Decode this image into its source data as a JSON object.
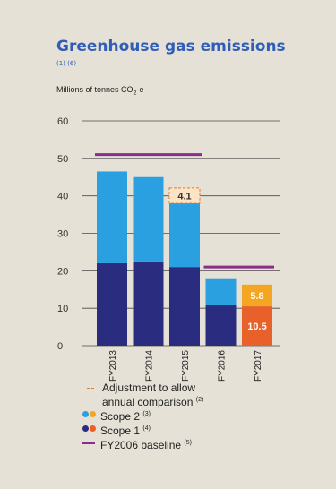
{
  "colors": {
    "scope1_main": "#2a2c7f",
    "scope2_main": "#2aa0e0",
    "scope1_fy2017": "#e8612a",
    "scope2_fy2017": "#f4a623",
    "baseline": "#8b2d8e",
    "adjustment": "#e8792a",
    "axis_text": "#333333"
  },
  "chart_data": {
    "type": "bar",
    "title": "Greenhouse gas emissions",
    "title_notes": "(1) (6)",
    "ylabel": "Millions of tonnes CO",
    "ylabel_sub": "2",
    "ylabel_suffix": "-e",
    "ylim": [
      0,
      60
    ],
    "yticks": [
      0,
      10,
      20,
      30,
      40,
      50,
      60
    ],
    "grid": true,
    "stacked": true,
    "categories": [
      "FY2013",
      "FY2014",
      "FY2015",
      "FY2016",
      "FY2017"
    ],
    "series": [
      {
        "name": "Scope 1",
        "note": "(4)",
        "values": [
          22,
          22.5,
          21,
          11,
          10.5
        ]
      },
      {
        "name": "Scope 2",
        "note": "(3)",
        "values": [
          24.5,
          22.5,
          17,
          7,
          5.8
        ]
      }
    ],
    "data_labels": [
      {
        "category": "FY2017",
        "series": "Scope 1",
        "text": "10.5"
      },
      {
        "category": "FY2017",
        "series": "Scope 2",
        "text": "5.8"
      }
    ],
    "adjustment": {
      "label": "Adjustment to allow annual comparison",
      "note": "(2)",
      "category": "FY2015",
      "value": 4.1,
      "text": "4.1"
    },
    "baselines": [
      {
        "label": "FY2006 baseline",
        "note": "(5)",
        "categories": [
          "FY2013",
          "FY2015"
        ],
        "value": 51
      },
      {
        "label": "FY2006 baseline",
        "note": "(5)",
        "categories": [
          "FY2016",
          "FY2017"
        ],
        "value": 21
      }
    ],
    "legend": {
      "placement": "bottom",
      "entries": [
        {
          "label": "Adjustment to allow",
          "label2": "annual comparison",
          "note": "(2)"
        },
        {
          "label": "Scope 2",
          "note": "(3)"
        },
        {
          "label": "Scope 1",
          "note": "(4)"
        },
        {
          "label": "FY2006 baseline",
          "note": "(5)"
        }
      ]
    }
  }
}
